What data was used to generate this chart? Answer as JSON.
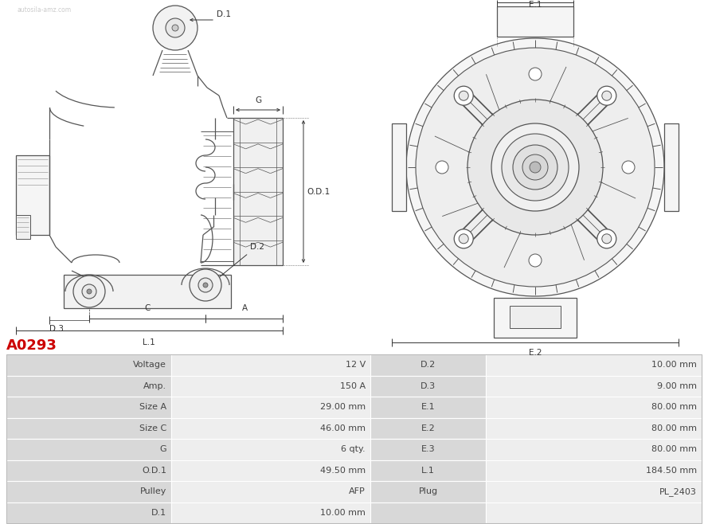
{
  "title": "A0293",
  "title_color": "#cc0000",
  "bg_color": "#ffffff",
  "rows": [
    [
      "Voltage",
      "12 V",
      "D.2",
      "10.00 mm"
    ],
    [
      "Amp.",
      "150 A",
      "D.3",
      "9.00 mm"
    ],
    [
      "Size A",
      "29.00 mm",
      "E.1",
      "80.00 mm"
    ],
    [
      "Size C",
      "46.00 mm",
      "E.2",
      "80.00 mm"
    ],
    [
      "G",
      "6 qty.",
      "E.3",
      "80.00 mm"
    ],
    [
      "O.D.1",
      "49.50 mm",
      "L.1",
      "184.50 mm"
    ],
    [
      "Pulley",
      "AFP",
      "Plug",
      "PL_2403"
    ],
    [
      "D.1",
      "10.00 mm",
      "",
      ""
    ]
  ],
  "font_size_table": 8.0,
  "font_size_title": 13,
  "lc": "#555555",
  "dim_color": "#333333"
}
